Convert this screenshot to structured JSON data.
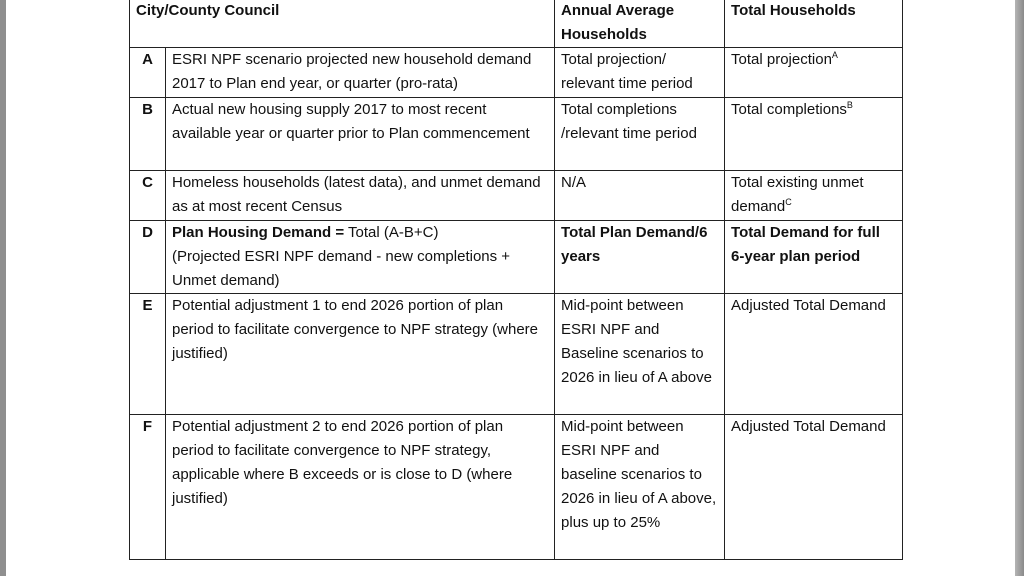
{
  "table": {
    "header": {
      "council": "City/County Council",
      "annual": "Annual Average Households",
      "total": "Total Households"
    },
    "rows": [
      {
        "id": "A",
        "desc": "ESRI NPF scenario projected new household demand 2017 to Plan end year, or quarter (pro-rata)",
        "annual": "Total projection/ relevant time period",
        "total": "Total projection",
        "total_sup": "A"
      },
      {
        "id": "B",
        "desc": "Actual new housing supply 2017 to most recent available year or quarter prior to Plan commencement",
        "annual": "Total completions /relevant time period",
        "total": "Total completions",
        "total_sup": "B"
      },
      {
        "id": "C",
        "desc": "Homeless households (latest data), and unmet demand as at most recent Census",
        "annual": "N/A",
        "total": "Total existing unmet demand",
        "total_sup": "C"
      },
      {
        "id": "D",
        "desc_bold": "Plan Housing Demand =",
        "desc_rest": " Total (A-B+C)",
        "desc_line2": "(Projected ESRI NPF demand - new completions + Unmet demand)",
        "annual": "Total Plan Demand/6 years",
        "total": "Total Demand for full 6-year plan period"
      },
      {
        "id": "E",
        "desc": "Potential adjustment 1 to end 2026 portion of plan period to facilitate convergence to NPF strategy (where justified)",
        "annual": "Mid-point between ESRI NPF and Baseline scenarios to 2026 in lieu of A above",
        "total": "Adjusted Total Demand"
      },
      {
        "id": "F",
        "desc": "Potential adjustment 2 to end 2026 portion of plan period to facilitate convergence to NPF strategy, applicable where B exceeds or is close to D (where justified)",
        "annual": "Mid-point between ESRI NPF and baseline scenarios to 2026 in lieu of A above, plus up to 25%",
        "total": "Adjusted Total Demand"
      }
    ]
  }
}
